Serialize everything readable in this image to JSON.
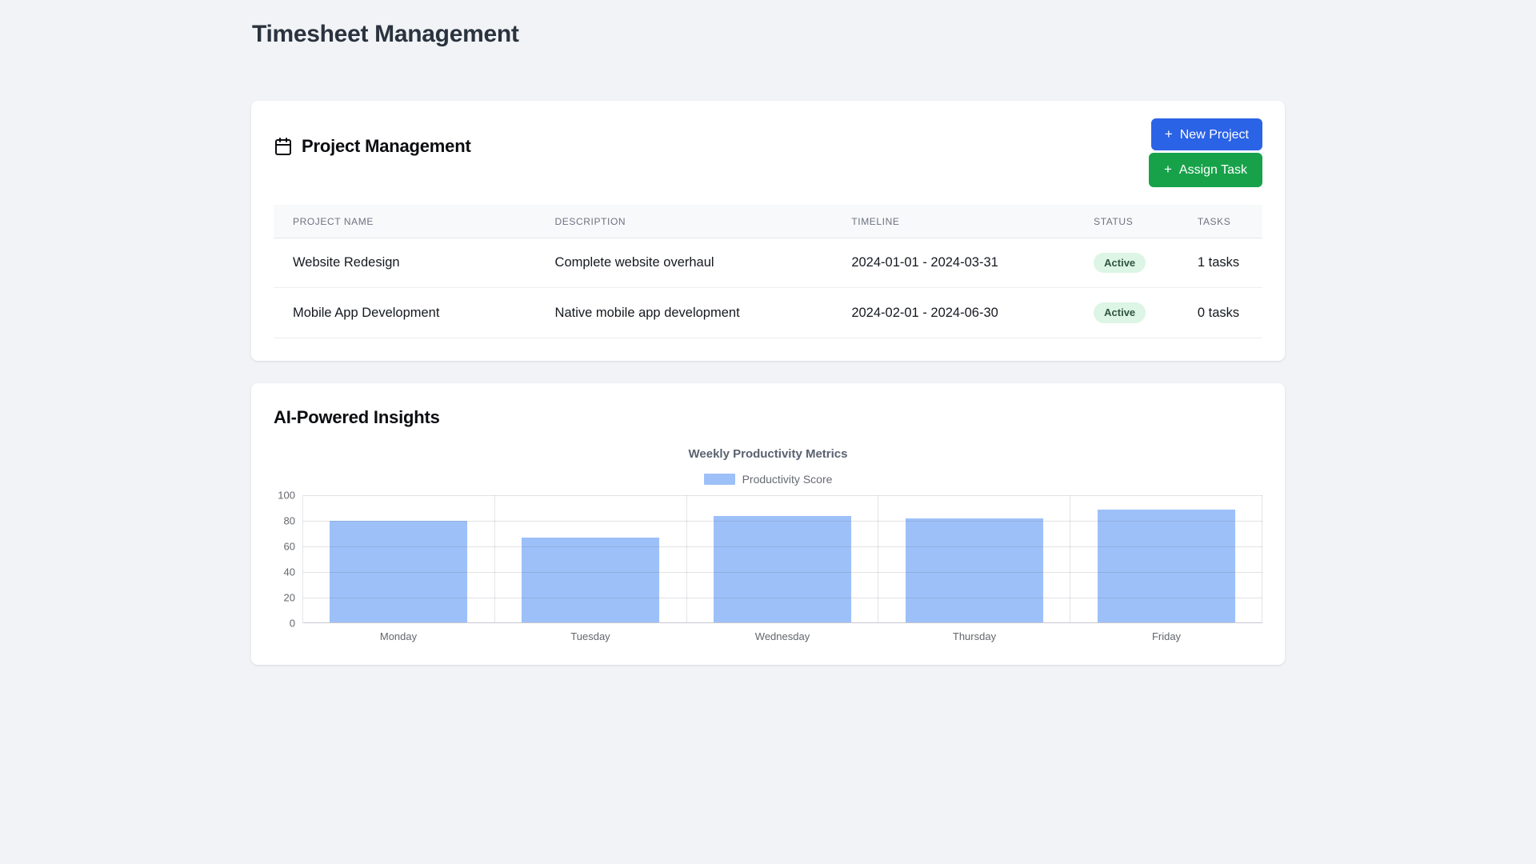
{
  "page": {
    "title": "Timesheet Management"
  },
  "colors": {
    "page_background": "#f1f3f6",
    "primary_blue": "#2b63e6",
    "primary_green": "#17a24a",
    "badge_background": "#dcf5e5",
    "badge_text": "#30543f",
    "bar_fill": "#9dc0f8"
  },
  "project_card": {
    "icon": "calendar-icon",
    "title": "Project Management",
    "buttons": {
      "new_project": {
        "icon": "+",
        "label": "New Project"
      },
      "assign_task": {
        "icon": "+",
        "label": "Assign Task"
      }
    },
    "table": {
      "headers": [
        "Project Name",
        "Description",
        "Timeline",
        "Status",
        "Tasks"
      ],
      "rows": [
        {
          "name": "Website Redesign",
          "description": "Complete website overhaul",
          "timeline": "2024-01-01 - 2024-03-31",
          "status": "Active",
          "tasks": "1 tasks"
        },
        {
          "name": "Mobile App Development",
          "description": "Native mobile app development",
          "timeline": "2024-02-01 - 2024-06-30",
          "status": "Active",
          "tasks": "0 tasks"
        }
      ]
    }
  },
  "insights_card": {
    "title": "AI-Powered Insights"
  },
  "chart_data": {
    "type": "bar",
    "title": "Weekly Productivity Metrics",
    "categories": [
      "Monday",
      "Tuesday",
      "Wednesday",
      "Thursday",
      "Friday"
    ],
    "series": [
      {
        "name": "Productivity Score",
        "values": [
          80,
          67,
          84,
          82,
          89
        ],
        "color": "#9dc0f8"
      }
    ],
    "xlabel": "",
    "ylabel": "",
    "ylim": [
      0,
      100
    ],
    "yticks": [
      0,
      20,
      40,
      60,
      80,
      100
    ],
    "grid": true,
    "legend_position": "top"
  }
}
